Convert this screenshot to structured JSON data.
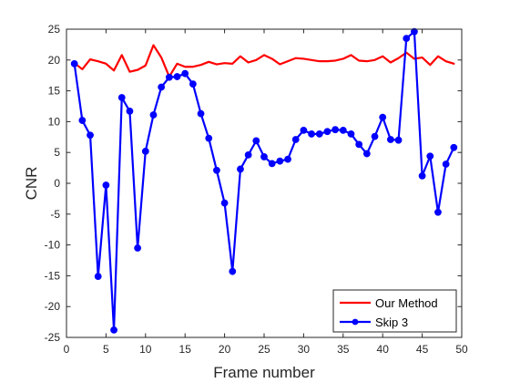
{
  "chart_data": {
    "type": "line",
    "title": "",
    "xlabel": "Frame number",
    "ylabel": "CNR",
    "xlim": [
      0,
      50
    ],
    "ylim": [
      -25,
      25
    ],
    "xticks": [
      0,
      5,
      10,
      15,
      20,
      25,
      30,
      35,
      40,
      45,
      50
    ],
    "yticks": [
      -25,
      -20,
      -15,
      -10,
      -5,
      0,
      5,
      10,
      15,
      20,
      25
    ],
    "xtick_labels": [
      "0",
      "5",
      "10",
      "15",
      "20",
      "25",
      "30",
      "35",
      "40",
      "45",
      "50"
    ],
    "ytick_labels": [
      "-25",
      "-20",
      "-15",
      "-10",
      "-5",
      "0",
      "5",
      "10",
      "15",
      "20",
      "25"
    ],
    "grid": false,
    "legend_position": "bottom-right",
    "x": [
      1,
      2,
      3,
      4,
      5,
      6,
      7,
      8,
      9,
      10,
      11,
      12,
      13,
      14,
      15,
      16,
      17,
      18,
      19,
      20,
      21,
      22,
      23,
      24,
      25,
      26,
      27,
      28,
      29,
      30,
      31,
      32,
      33,
      34,
      35,
      36,
      37,
      38,
      39,
      40,
      41,
      42,
      43,
      44,
      45,
      46,
      47,
      48,
      49
    ],
    "series": [
      {
        "name": "Our Method",
        "color": "#ff0000",
        "marker": "none",
        "values": [
          19.5,
          18.5,
          20.1,
          19.8,
          19.4,
          18.3,
          20.8,
          18.1,
          18.4,
          19.1,
          22.4,
          20.4,
          17.3,
          19.4,
          18.9,
          18.9,
          19.2,
          19.7,
          19.3,
          19.5,
          19.4,
          20.6,
          19.6,
          20.0,
          20.8,
          20.2,
          19.3,
          19.8,
          20.3,
          20.2,
          20.0,
          19.8,
          19.8,
          19.9,
          20.2,
          20.8,
          19.9,
          19.8,
          20.0,
          20.6,
          19.6,
          20.3,
          21.2,
          20.2,
          20.4,
          19.2,
          20.6,
          19.8,
          19.4
        ]
      },
      {
        "name": "Skip 3",
        "color": "#0000ff",
        "marker": "circle",
        "values": [
          19.4,
          10.2,
          7.8,
          -15.1,
          -0.3,
          -23.8,
          13.9,
          11.7,
          -10.5,
          5.2,
          11.1,
          15.6,
          17.2,
          17.3,
          17.8,
          16.1,
          11.3,
          7.3,
          2.1,
          -3.2,
          -14.3,
          2.3,
          4.6,
          6.9,
          4.3,
          3.2,
          3.6,
          3.9,
          7.1,
          8.6,
          8.0,
          8.0,
          8.4,
          8.7,
          8.6,
          8.0,
          6.3,
          4.8,
          7.6,
          10.7,
          7.1,
          7.0,
          23.5,
          24.6,
          1.2,
          4.4,
          -4.7,
          3.1,
          5.8
        ]
      }
    ]
  }
}
